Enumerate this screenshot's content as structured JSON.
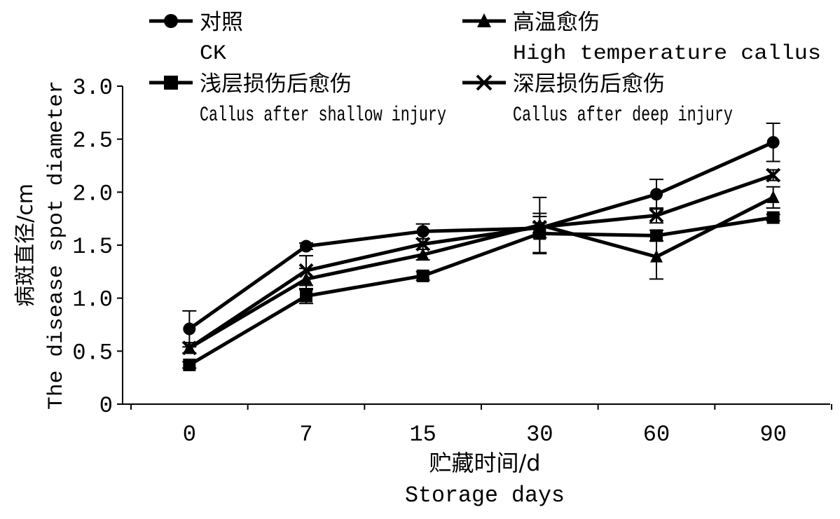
{
  "chart_data": {
    "type": "line",
    "title": "",
    "xlabel_cn": "贮藏时间/d",
    "xlabel": "Storage days",
    "ylabel_cn": "病斑直径/cm",
    "ylabel": "The disease spot diameter",
    "categories": [
      "0",
      "7",
      "15",
      "30",
      "60",
      "90"
    ],
    "ylim": [
      0,
      3.0
    ],
    "yticks": [
      "0",
      "0.5",
      "1.0",
      "1.5",
      "2.0",
      "2.5",
      "3.0"
    ],
    "ytick_values": [
      0,
      0.5,
      1.0,
      1.5,
      2.0,
      2.5,
      3.0
    ],
    "grid": false,
    "legend_placement": "top",
    "color": "#000000",
    "series": [
      {
        "name_cn": "对照",
        "name": "CK",
        "marker": "circle",
        "values": [
          0.71,
          1.49,
          1.63,
          1.66,
          1.98,
          2.47
        ],
        "errors": [
          0.17,
          0.03,
          0.07,
          0.05,
          0.14,
          0.18
        ]
      },
      {
        "name_cn": "高温愈伤",
        "name": "High temperature callus",
        "marker": "triangle",
        "values": [
          0.53,
          1.18,
          1.41,
          1.69,
          1.39,
          1.95
        ],
        "errors": [
          0.05,
          0.1,
          0.05,
          0.26,
          0.21,
          0.1
        ]
      },
      {
        "name_cn": "浅层损伤后愈伤",
        "name": "Callus after shallow injury",
        "marker": "square",
        "values": [
          0.37,
          1.02,
          1.21,
          1.61,
          1.59,
          1.76
        ],
        "errors": [
          0.03,
          0.07,
          0.04,
          0.19,
          0.05,
          0.03
        ]
      },
      {
        "name_cn": "深层损伤后愈伤",
        "name": "Callus after deep injury",
        "marker": "x",
        "values": [
          0.53,
          1.26,
          1.51,
          1.67,
          1.78,
          2.16
        ],
        "errors": [
          0.05,
          0.14,
          0.05,
          0.1,
          0.07,
          0.05
        ]
      }
    ]
  }
}
